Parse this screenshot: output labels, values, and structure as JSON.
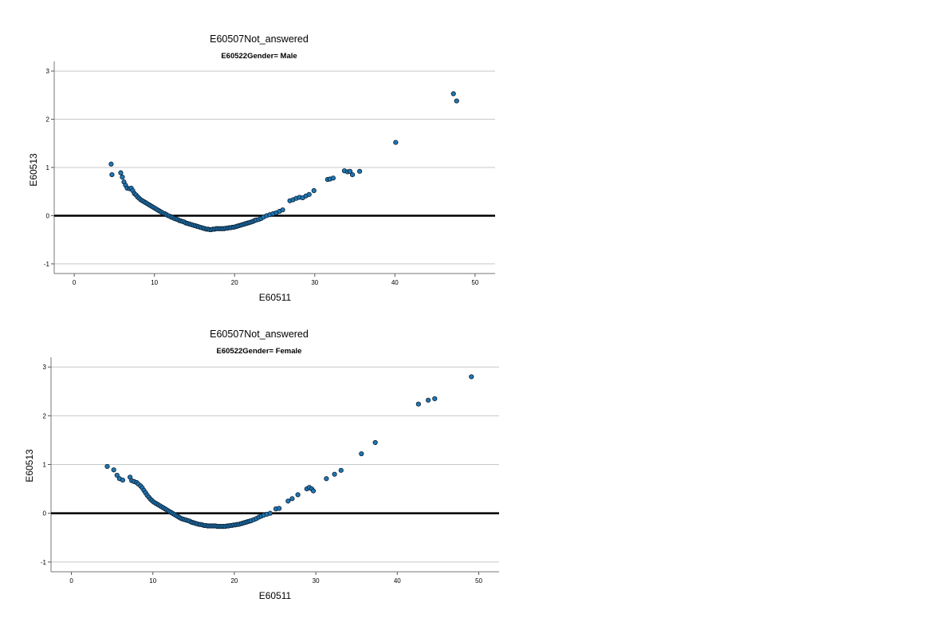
{
  "chart_data": [
    {
      "type": "scatter",
      "title": "E60507Not_answered",
      "subtitle": "E60522Gender= Male",
      "xlabel": "E60511",
      "ylabel": "E60513",
      "xlim": [
        -2.5,
        52.5
      ],
      "ylim": [
        -1.2,
        3.2
      ],
      "xticks": [
        0,
        10,
        20,
        30,
        40,
        50
      ],
      "yticks": [
        -1,
        0,
        1,
        2,
        3
      ],
      "grid": true,
      "reference_line_y": 0,
      "marker_color": "#1f77b4",
      "points": [
        [
          4.6,
          1.07
        ],
        [
          4.7,
          0.85
        ],
        [
          5.8,
          0.89
        ],
        [
          6.0,
          0.8
        ],
        [
          6.2,
          0.7
        ],
        [
          6.4,
          0.63
        ],
        [
          6.6,
          0.57
        ],
        [
          6.9,
          0.56
        ],
        [
          7.1,
          0.57
        ],
        [
          7.3,
          0.52
        ],
        [
          7.5,
          0.46
        ],
        [
          7.7,
          0.43
        ],
        [
          7.9,
          0.39
        ],
        [
          8.1,
          0.36
        ],
        [
          8.3,
          0.33
        ],
        [
          8.5,
          0.31
        ],
        [
          8.7,
          0.29
        ],
        [
          8.9,
          0.27
        ],
        [
          9.1,
          0.25
        ],
        [
          9.3,
          0.23
        ],
        [
          9.5,
          0.21
        ],
        [
          9.7,
          0.19
        ],
        [
          9.9,
          0.17
        ],
        [
          10.1,
          0.15
        ],
        [
          10.3,
          0.13
        ],
        [
          10.5,
          0.11
        ],
        [
          10.7,
          0.09
        ],
        [
          10.9,
          0.07
        ],
        [
          11.1,
          0.05
        ],
        [
          11.3,
          0.04
        ],
        [
          11.5,
          0.02
        ],
        [
          11.7,
          0.0
        ],
        [
          11.9,
          -0.01
        ],
        [
          12.1,
          -0.03
        ],
        [
          12.3,
          -0.04
        ],
        [
          12.5,
          -0.06
        ],
        [
          12.7,
          -0.07
        ],
        [
          12.9,
          -0.08
        ],
        [
          13.1,
          -0.1
        ],
        [
          13.3,
          -0.11
        ],
        [
          13.5,
          -0.12
        ],
        [
          13.7,
          -0.13
        ],
        [
          13.9,
          -0.15
        ],
        [
          14.1,
          -0.16
        ],
        [
          14.3,
          -0.17
        ],
        [
          14.5,
          -0.18
        ],
        [
          14.7,
          -0.19
        ],
        [
          14.9,
          -0.2
        ],
        [
          15.1,
          -0.21
        ],
        [
          15.3,
          -0.22
        ],
        [
          15.5,
          -0.23
        ],
        [
          15.7,
          -0.24
        ],
        [
          15.9,
          -0.25
        ],
        [
          16.1,
          -0.26
        ],
        [
          16.3,
          -0.27
        ],
        [
          16.5,
          -0.28
        ],
        [
          16.7,
          -0.28
        ],
        [
          16.9,
          -0.29
        ],
        [
          17.1,
          -0.29
        ],
        [
          17.3,
          -0.28
        ],
        [
          17.5,
          -0.28
        ],
        [
          17.7,
          -0.27
        ],
        [
          17.9,
          -0.27
        ],
        [
          18.1,
          -0.27
        ],
        [
          18.3,
          -0.27
        ],
        [
          18.5,
          -0.27
        ],
        [
          18.7,
          -0.27
        ],
        [
          18.9,
          -0.26
        ],
        [
          19.1,
          -0.26
        ],
        [
          19.3,
          -0.25
        ],
        [
          19.5,
          -0.25
        ],
        [
          19.7,
          -0.24
        ],
        [
          19.9,
          -0.24
        ],
        [
          20.1,
          -0.23
        ],
        [
          20.3,
          -0.22
        ],
        [
          20.5,
          -0.21
        ],
        [
          20.7,
          -0.2
        ],
        [
          20.9,
          -0.19
        ],
        [
          21.1,
          -0.18
        ],
        [
          21.3,
          -0.17
        ],
        [
          21.5,
          -0.16
        ],
        [
          21.7,
          -0.15
        ],
        [
          21.9,
          -0.14
        ],
        [
          22.1,
          -0.13
        ],
        [
          22.3,
          -0.12
        ],
        [
          22.5,
          -0.1
        ],
        [
          22.7,
          -0.09
        ],
        [
          23.0,
          -0.08
        ],
        [
          23.3,
          -0.06
        ],
        [
          23.6,
          -0.03
        ],
        [
          24.0,
          0.0
        ],
        [
          24.4,
          0.02
        ],
        [
          24.8,
          0.04
        ],
        [
          25.2,
          0.06
        ],
        [
          25.6,
          0.09
        ],
        [
          26.0,
          0.12
        ],
        [
          26.9,
          0.31
        ],
        [
          27.3,
          0.33
        ],
        [
          27.7,
          0.36
        ],
        [
          28.1,
          0.38
        ],
        [
          28.5,
          0.37
        ],
        [
          28.9,
          0.41
        ],
        [
          29.3,
          0.44
        ],
        [
          29.9,
          0.52
        ],
        [
          31.6,
          0.75
        ],
        [
          31.9,
          0.76
        ],
        [
          32.3,
          0.78
        ],
        [
          33.7,
          0.93
        ],
        [
          34.1,
          0.91
        ],
        [
          34.4,
          0.92
        ],
        [
          34.7,
          0.85
        ],
        [
          35.6,
          0.92
        ],
        [
          40.1,
          1.52
        ],
        [
          47.3,
          2.53
        ],
        [
          47.7,
          2.38
        ]
      ]
    },
    {
      "type": "scatter",
      "title": "E60507Not_answered",
      "subtitle": "E60522Gender= Female",
      "xlabel": "E60511",
      "ylabel": "E60513",
      "xlim": [
        -2.5,
        52.5
      ],
      "ylim": [
        -1.2,
        3.2
      ],
      "xticks": [
        0,
        10,
        20,
        30,
        40,
        50
      ],
      "yticks": [
        -1,
        0,
        1,
        2,
        3
      ],
      "grid": true,
      "reference_line_y": 0,
      "marker_color": "#1f77b4",
      "points": [
        [
          4.4,
          0.96
        ],
        [
          5.2,
          0.89
        ],
        [
          5.6,
          0.78
        ],
        [
          5.9,
          0.71
        ],
        [
          6.3,
          0.68
        ],
        [
          7.2,
          0.74
        ],
        [
          7.4,
          0.67
        ],
        [
          7.7,
          0.65
        ],
        [
          8.0,
          0.63
        ],
        [
          8.2,
          0.6
        ],
        [
          8.5,
          0.56
        ],
        [
          8.7,
          0.52
        ],
        [
          8.9,
          0.47
        ],
        [
          9.1,
          0.42
        ],
        [
          9.3,
          0.37
        ],
        [
          9.5,
          0.33
        ],
        [
          9.7,
          0.29
        ],
        [
          9.9,
          0.26
        ],
        [
          10.1,
          0.23
        ],
        [
          10.3,
          0.21
        ],
        [
          10.5,
          0.19
        ],
        [
          10.7,
          0.17
        ],
        [
          10.9,
          0.15
        ],
        [
          11.1,
          0.13
        ],
        [
          11.3,
          0.11
        ],
        [
          11.5,
          0.09
        ],
        [
          11.7,
          0.07
        ],
        [
          11.9,
          0.05
        ],
        [
          12.1,
          0.03
        ],
        [
          12.3,
          0.01
        ],
        [
          12.5,
          -0.01
        ],
        [
          12.7,
          -0.03
        ],
        [
          12.9,
          -0.05
        ],
        [
          13.1,
          -0.07
        ],
        [
          13.3,
          -0.09
        ],
        [
          13.5,
          -0.11
        ],
        [
          13.7,
          -0.12
        ],
        [
          13.9,
          -0.13
        ],
        [
          14.1,
          -0.14
        ],
        [
          14.3,
          -0.15
        ],
        [
          14.5,
          -0.16
        ],
        [
          14.7,
          -0.18
        ],
        [
          14.9,
          -0.19
        ],
        [
          15.1,
          -0.2
        ],
        [
          15.3,
          -0.21
        ],
        [
          15.5,
          -0.22
        ],
        [
          15.7,
          -0.23
        ],
        [
          15.9,
          -0.23
        ],
        [
          16.1,
          -0.24
        ],
        [
          16.3,
          -0.25
        ],
        [
          16.5,
          -0.25
        ],
        [
          16.7,
          -0.26
        ],
        [
          16.9,
          -0.26
        ],
        [
          17.1,
          -0.26
        ],
        [
          17.3,
          -0.26
        ],
        [
          17.5,
          -0.26
        ],
        [
          17.7,
          -0.26
        ],
        [
          17.9,
          -0.27
        ],
        [
          18.1,
          -0.27
        ],
        [
          18.3,
          -0.27
        ],
        [
          18.5,
          -0.27
        ],
        [
          18.7,
          -0.27
        ],
        [
          18.9,
          -0.27
        ],
        [
          19.1,
          -0.26
        ],
        [
          19.3,
          -0.26
        ],
        [
          19.5,
          -0.25
        ],
        [
          19.7,
          -0.25
        ],
        [
          19.9,
          -0.24
        ],
        [
          20.1,
          -0.24
        ],
        [
          20.3,
          -0.23
        ],
        [
          20.5,
          -0.23
        ],
        [
          20.7,
          -0.22
        ],
        [
          20.9,
          -0.21
        ],
        [
          21.1,
          -0.2
        ],
        [
          21.3,
          -0.19
        ],
        [
          21.5,
          -0.18
        ],
        [
          21.7,
          -0.17
        ],
        [
          21.9,
          -0.16
        ],
        [
          22.1,
          -0.15
        ],
        [
          22.4,
          -0.13
        ],
        [
          22.7,
          -0.11
        ],
        [
          23.0,
          -0.08
        ],
        [
          23.3,
          -0.06
        ],
        [
          23.6,
          -0.04
        ],
        [
          24.0,
          -0.02
        ],
        [
          24.4,
          0.0
        ],
        [
          25.1,
          0.09
        ],
        [
          25.5,
          0.1
        ],
        [
          26.6,
          0.25
        ],
        [
          27.1,
          0.3
        ],
        [
          27.8,
          0.38
        ],
        [
          28.9,
          0.5
        ],
        [
          29.2,
          0.53
        ],
        [
          29.5,
          0.5
        ],
        [
          29.7,
          0.46
        ],
        [
          31.3,
          0.71
        ],
        [
          32.3,
          0.8
        ],
        [
          33.1,
          0.88
        ],
        [
          35.6,
          1.22
        ],
        [
          37.3,
          1.45
        ],
        [
          42.6,
          2.24
        ],
        [
          43.8,
          2.32
        ],
        [
          44.6,
          2.35
        ],
        [
          49.1,
          2.8
        ]
      ]
    }
  ]
}
